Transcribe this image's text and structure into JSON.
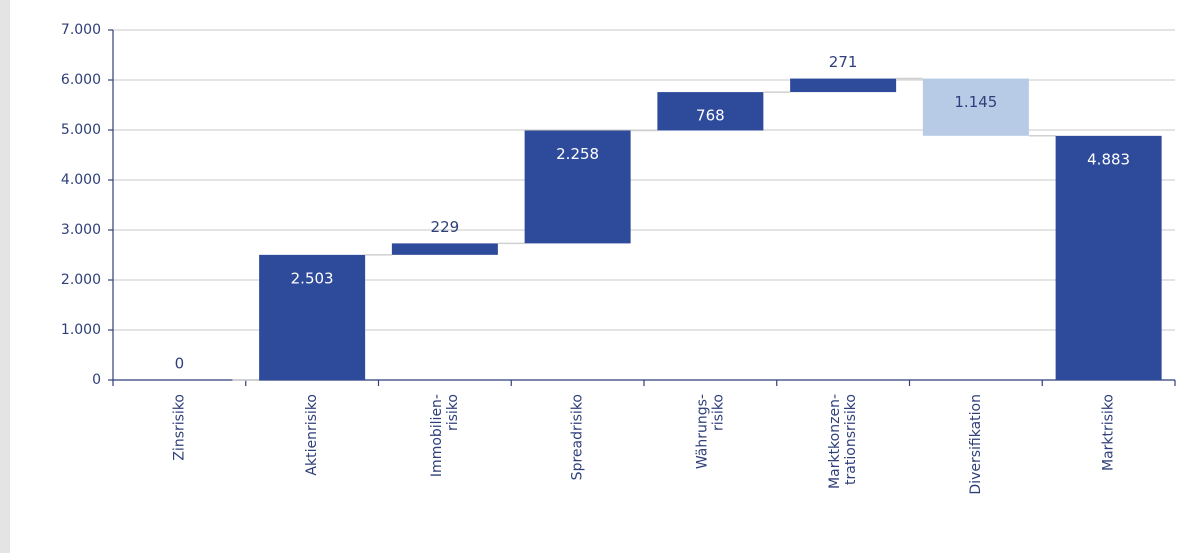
{
  "chart_data": {
    "type": "waterfall",
    "categories": [
      "Zinsrisiko",
      "Aktienrisiko",
      "Immobilien-\nrisiko",
      "Spreadrisiko",
      "Währungs-\nrisiko",
      "Marktkonzen-\ntrationsrisiko",
      "Diversifikation",
      "Marktrisiko"
    ],
    "values": [
      0,
      2503,
      229,
      2258,
      768,
      271,
      -1145,
      4883
    ],
    "value_labels": [
      "0",
      "2.503",
      "229",
      "2.258",
      "768",
      "271",
      "1.145",
      "4.883"
    ],
    "measure": [
      "relative",
      "relative",
      "relative",
      "relative",
      "relative",
      "relative",
      "relative",
      "total"
    ],
    "color": "#2e4a9b",
    "decrease_color": "#b7cbe7",
    "ylim": [
      0,
      7000
    ],
    "yticks": [
      {
        "value": 0,
        "label": "0"
      },
      {
        "value": 1000,
        "label": "1.000"
      },
      {
        "value": 2000,
        "label": "2.000"
      },
      {
        "value": 3000,
        "label": "3.000"
      },
      {
        "value": 4000,
        "label": "4.000"
      },
      {
        "value": 5000,
        "label": "5.000"
      },
      {
        "value": 6000,
        "label": "6.000"
      },
      {
        "value": 7000,
        "label": "7.000"
      }
    ],
    "grid": true
  }
}
